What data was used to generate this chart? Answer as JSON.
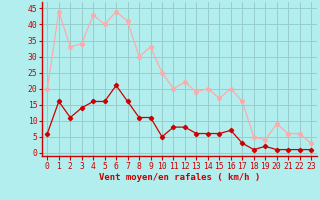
{
  "x": [
    0,
    1,
    2,
    3,
    4,
    5,
    6,
    7,
    8,
    9,
    10,
    11,
    12,
    13,
    14,
    15,
    16,
    17,
    18,
    19,
    20,
    21,
    22,
    23
  ],
  "y_mean": [
    6,
    16,
    11,
    14,
    16,
    16,
    21,
    16,
    11,
    11,
    5,
    8,
    8,
    6,
    6,
    6,
    7,
    3,
    1,
    2,
    1,
    1,
    1,
    1
  ],
  "y_gust": [
    20,
    44,
    33,
    34,
    43,
    40,
    44,
    41,
    30,
    33,
    25,
    20,
    22,
    19,
    20,
    17,
    20,
    16,
    5,
    4,
    9,
    6,
    6,
    3
  ],
  "mean_color": "#cc0000",
  "gust_color": "#ffaaaa",
  "bg_color": "#b2eeee",
  "grid_color": "#99cccc",
  "xlabel": "Vent moyen/en rafales ( km/h )",
  "ylabel_ticks": [
    0,
    5,
    10,
    15,
    20,
    25,
    30,
    35,
    40,
    45
  ],
  "ylim": [
    -1,
    47
  ],
  "xlim": [
    -0.5,
    23.5
  ],
  "axis_color": "#cc0000",
  "tick_color": "#cc0000",
  "xlabel_fontsize": 6.5,
  "tick_fontsize": 5.8,
  "marker_size": 2.5
}
